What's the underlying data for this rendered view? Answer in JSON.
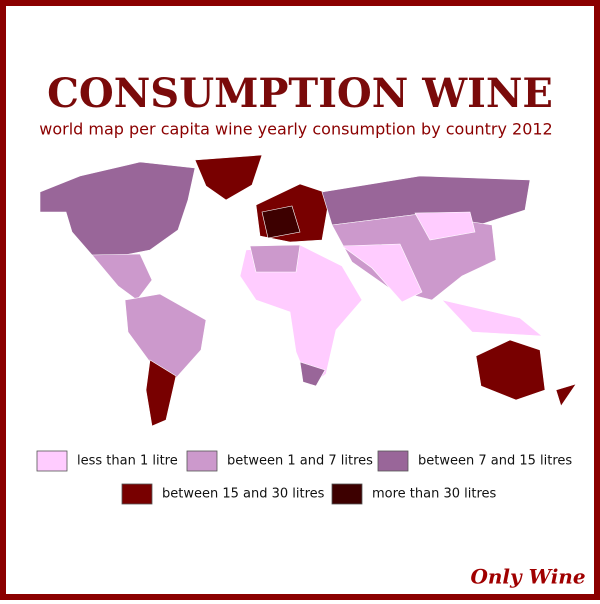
{
  "header": {
    "title": "CONSUMPTION WINE",
    "subtitle": "world map per capita wine yearly consumption by country 2012"
  },
  "legend": [
    {
      "label": "less than 1 litre",
      "color": "#ffccff"
    },
    {
      "label": "between 1 and 7 litres",
      "color": "#cc99cc"
    },
    {
      "label": "between 7 and 15 litres",
      "color": "#996699"
    },
    {
      "label": "between 15 and 30 litres",
      "color": "#780000"
    },
    {
      "label": "more than 30 litres",
      "color": "#3d0000"
    }
  ],
  "logo": "Only Wine"
}
